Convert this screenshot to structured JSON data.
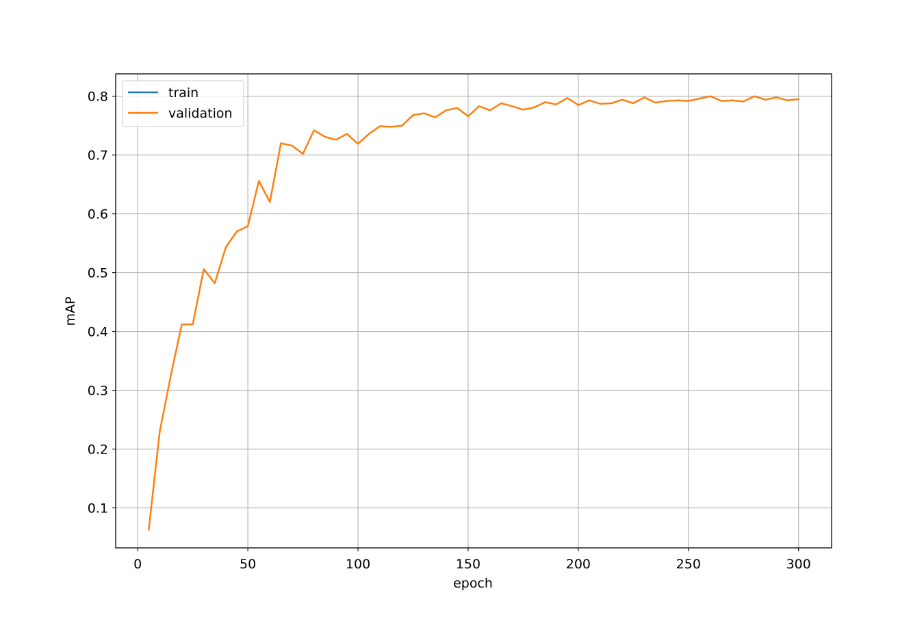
{
  "chart_data": {
    "type": "line",
    "title": "",
    "xlabel": "epoch",
    "ylabel": "mAP",
    "xlim": [
      -10,
      315
    ],
    "ylim": [
      0.032,
      0.838
    ],
    "xticks": [
      0,
      50,
      100,
      150,
      200,
      250,
      300
    ],
    "yticks": [
      0.1,
      0.2,
      0.3,
      0.4,
      0.5,
      0.6,
      0.7,
      0.8
    ],
    "xtick_labels": [
      "0",
      "50",
      "100",
      "150",
      "200",
      "250",
      "300"
    ],
    "ytick_labels": [
      "0.1",
      "0.2",
      "0.3",
      "0.4",
      "0.5",
      "0.6",
      "0.7",
      "0.8"
    ],
    "grid": true,
    "legend_position": "upper-left",
    "series": [
      {
        "name": "train",
        "color": "#1f77b4",
        "x": [],
        "y": []
      },
      {
        "name": "validation",
        "color": "#ff7f0e",
        "x": [
          5,
          10,
          15,
          20,
          25,
          30,
          35,
          40,
          45,
          50,
          55,
          60,
          65,
          70,
          75,
          80,
          85,
          90,
          95,
          100,
          105,
          110,
          115,
          120,
          125,
          130,
          135,
          140,
          145,
          150,
          155,
          160,
          165,
          170,
          175,
          180,
          185,
          190,
          195,
          200,
          205,
          210,
          215,
          220,
          225,
          230,
          235,
          240,
          245,
          250,
          255,
          260,
          265,
          270,
          275,
          280,
          285,
          290,
          295,
          300
        ],
        "y": [
          0.063,
          0.23,
          0.325,
          0.412,
          0.412,
          0.506,
          0.482,
          0.543,
          0.57,
          0.579,
          0.656,
          0.62,
          0.72,
          0.716,
          0.702,
          0.742,
          0.731,
          0.726,
          0.736,
          0.719,
          0.736,
          0.749,
          0.748,
          0.75,
          0.768,
          0.771,
          0.764,
          0.776,
          0.78,
          0.766,
          0.783,
          0.776,
          0.788,
          0.783,
          0.777,
          0.781,
          0.79,
          0.786,
          0.797,
          0.785,
          0.793,
          0.787,
          0.788,
          0.794,
          0.788,
          0.798,
          0.789,
          0.792,
          0.793,
          0.792,
          0.796,
          0.8,
          0.792,
          0.793,
          0.791,
          0.8,
          0.794,
          0.798,
          0.793,
          0.795
        ]
      }
    ]
  }
}
